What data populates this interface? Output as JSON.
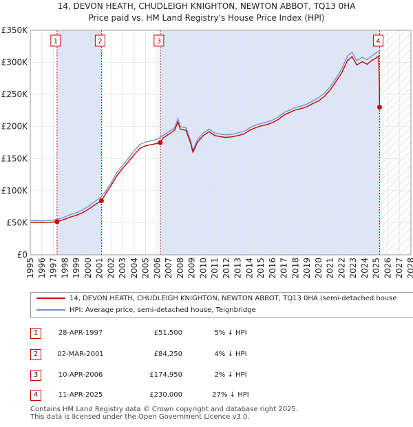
{
  "title_line1": "14, DEVON HEATH, CHUDLEIGH KNIGHTON, NEWTON ABBOT, TQ13 0HA",
  "title_line2": "Price paid vs. HM Land Registry's House Price Index (HPI)",
  "colors": {
    "property": "#cc0000",
    "hpi": "#6a8fd0",
    "shade": "#dde6f7",
    "hatch": "#c8c8c8",
    "marker_border": "#cc0000"
  },
  "legend": {
    "property_label": "14, DEVON HEATH, CHUDLEIGH KNIGHTON, NEWTON ABBOT, TQ13 0HA (semi-detached house",
    "hpi_label": "HPI: Average price, semi-detached house, Teignbridge"
  },
  "sales": [
    {
      "num": "1",
      "date": "28-APR-1997",
      "price": "£51,500",
      "hpi_diff": "5% ↓ HPI"
    },
    {
      "num": "2",
      "date": "02-MAR-2001",
      "price": "£84,250",
      "hpi_diff": "4% ↓ HPI"
    },
    {
      "num": "3",
      "date": "10-APR-2006",
      "price": "£174,950",
      "hpi_diff": "2% ↓ HPI"
    },
    {
      "num": "4",
      "date": "11-APR-2025",
      "price": "£230,000",
      "hpi_diff": "27% ↓ HPI"
    }
  ],
  "footer_line1": "Contains HM Land Registry data © Crown copyright and database right 2025.",
  "footer_line2": "This data is licensed under the Open Government Licence v3.0.",
  "chart_data": {
    "type": "line",
    "title": "14, DEVON HEATH, CHUDLEIGH KNIGHTON, NEWTON ABBOT, TQ13 0HA",
    "subtitle": "Price paid vs. HM Land Registry's House Price Index (HPI)",
    "xlim": [
      1995,
      2028
    ],
    "ylim": [
      0,
      350000
    ],
    "x_ticks": [
      "1995",
      "1996",
      "1997",
      "1998",
      "1999",
      "2000",
      "2001",
      "2002",
      "2003",
      "2004",
      "2005",
      "2006",
      "2007",
      "2008",
      "2009",
      "2010",
      "2011",
      "2012",
      "2013",
      "2014",
      "2015",
      "2016",
      "2017",
      "2018",
      "2019",
      "2020",
      "2021",
      "2022",
      "2023",
      "2024",
      "2025",
      "2026",
      "2027",
      "2028"
    ],
    "y_ticks": [
      {
        "value": 0,
        "label": "£0"
      },
      {
        "value": 50000,
        "label": "£50K"
      },
      {
        "value": 100000,
        "label": "£100K"
      },
      {
        "value": 150000,
        "label": "£150K"
      },
      {
        "value": 200000,
        "label": "£200K"
      },
      {
        "value": 250000,
        "label": "£250K"
      },
      {
        "value": 300000,
        "label": "£300K"
      },
      {
        "value": 350000,
        "label": "£350K"
      }
    ],
    "shaded_periods": [
      [
        1997.32,
        2001.17
      ],
      [
        2006.27,
        2025.28
      ]
    ],
    "future_from": 2025.28,
    "series": [
      {
        "name": "HPI: Average price, semi-detached house, Teignbridge",
        "points": [
          [
            1995.0,
            53000
          ],
          [
            1995.5,
            53500
          ],
          [
            1996.0,
            52800
          ],
          [
            1996.5,
            53500
          ],
          [
            1997.0,
            54200
          ],
          [
            1997.5,
            56000
          ],
          [
            1998.0,
            59000
          ],
          [
            1998.5,
            63000
          ],
          [
            1999.0,
            65500
          ],
          [
            1999.5,
            70000
          ],
          [
            2000.0,
            75000
          ],
          [
            2000.5,
            82000
          ],
          [
            2001.0,
            88000
          ],
          [
            2001.5,
            98000
          ],
          [
            2002.0,
            112000
          ],
          [
            2002.5,
            128000
          ],
          [
            2003.0,
            140000
          ],
          [
            2003.5,
            150000
          ],
          [
            2004.0,
            162000
          ],
          [
            2004.5,
            172000
          ],
          [
            2005.0,
            176000
          ],
          [
            2005.5,
            178000
          ],
          [
            2006.0,
            180000
          ],
          [
            2006.5,
            186000
          ],
          [
            2007.0,
            192000
          ],
          [
            2007.5,
            198000
          ],
          [
            2007.8,
            212000
          ],
          [
            2008.0,
            200000
          ],
          [
            2008.5,
            198000
          ],
          [
            2008.9,
            178000
          ],
          [
            2009.1,
            163000
          ],
          [
            2009.5,
            180000
          ],
          [
            2010.0,
            190000
          ],
          [
            2010.5,
            196000
          ],
          [
            2011.0,
            190000
          ],
          [
            2011.5,
            188000
          ],
          [
            2012.0,
            187000
          ],
          [
            2012.5,
            188000
          ],
          [
            2013.0,
            190000
          ],
          [
            2013.5,
            192000
          ],
          [
            2014.0,
            198000
          ],
          [
            2014.5,
            202000
          ],
          [
            2015.0,
            205000
          ],
          [
            2015.5,
            207000
          ],
          [
            2016.0,
            210000
          ],
          [
            2016.5,
            215000
          ],
          [
            2017.0,
            222000
          ],
          [
            2017.5,
            226000
          ],
          [
            2018.0,
            230000
          ],
          [
            2018.5,
            232000
          ],
          [
            2019.0,
            235000
          ],
          [
            2019.5,
            240000
          ],
          [
            2020.0,
            245000
          ],
          [
            2020.5,
            252000
          ],
          [
            2021.0,
            262000
          ],
          [
            2021.5,
            275000
          ],
          [
            2022.0,
            290000
          ],
          [
            2022.5,
            310000
          ],
          [
            2022.9,
            316000
          ],
          [
            2023.3,
            303000
          ],
          [
            2023.8,
            308000
          ],
          [
            2024.2,
            304000
          ],
          [
            2024.6,
            310000
          ],
          [
            2025.0,
            315000
          ],
          [
            2025.28,
            318000
          ]
        ]
      },
      {
        "name": "14, DEVON HEATH, CHUDLEIGH KNIGHTON, NEWTON ABBOT, TQ13 0HA (semi-detached house",
        "points": [
          [
            1995.0,
            50500
          ],
          [
            1995.5,
            51000
          ],
          [
            1996.0,
            50200
          ],
          [
            1996.5,
            50800
          ],
          [
            1997.0,
            51200
          ],
          [
            1997.32,
            51500
          ],
          [
            1997.5,
            52800
          ],
          [
            1998.0,
            55500
          ],
          [
            1998.5,
            59000
          ],
          [
            1999.0,
            61500
          ],
          [
            1999.5,
            65500
          ],
          [
            2000.0,
            70500
          ],
          [
            2000.5,
            77000
          ],
          [
            2001.0,
            82500
          ],
          [
            2001.17,
            84250
          ],
          [
            2001.5,
            94000
          ],
          [
            2002.0,
            108000
          ],
          [
            2002.5,
            123000
          ],
          [
            2003.0,
            135000
          ],
          [
            2003.5,
            145000
          ],
          [
            2004.0,
            156000
          ],
          [
            2004.5,
            166000
          ],
          [
            2005.0,
            170000
          ],
          [
            2005.5,
            172000
          ],
          [
            2006.0,
            173500
          ],
          [
            2006.27,
            174950
          ],
          [
            2006.5,
            182000
          ],
          [
            2007.0,
            188000
          ],
          [
            2007.5,
            194000
          ],
          [
            2007.8,
            207000
          ],
          [
            2008.0,
            196000
          ],
          [
            2008.5,
            194000
          ],
          [
            2008.9,
            174000
          ],
          [
            2009.1,
            160000
          ],
          [
            2009.5,
            176000
          ],
          [
            2010.0,
            186000
          ],
          [
            2010.5,
            192000
          ],
          [
            2011.0,
            186000
          ],
          [
            2011.5,
            184000
          ],
          [
            2012.0,
            183000
          ],
          [
            2012.5,
            184000
          ],
          [
            2013.0,
            186000
          ],
          [
            2013.5,
            188000
          ],
          [
            2014.0,
            194000
          ],
          [
            2014.5,
            198000
          ],
          [
            2015.0,
            201000
          ],
          [
            2015.5,
            203000
          ],
          [
            2016.0,
            206000
          ],
          [
            2016.5,
            211000
          ],
          [
            2017.0,
            218000
          ],
          [
            2017.5,
            222000
          ],
          [
            2018.0,
            226000
          ],
          [
            2018.5,
            228000
          ],
          [
            2019.0,
            231000
          ],
          [
            2019.5,
            236000
          ],
          [
            2020.0,
            240000
          ],
          [
            2020.5,
            247000
          ],
          [
            2021.0,
            257000
          ],
          [
            2021.5,
            270000
          ],
          [
            2022.0,
            284000
          ],
          [
            2022.5,
            303000
          ],
          [
            2022.9,
            309000
          ],
          [
            2023.3,
            296000
          ],
          [
            2023.8,
            301000
          ],
          [
            2024.2,
            297000
          ],
          [
            2024.6,
            303000
          ],
          [
            2025.0,
            307000
          ],
          [
            2025.2,
            310000
          ],
          [
            2025.26,
            270000
          ],
          [
            2025.28,
            230000
          ]
        ]
      }
    ],
    "sale_points": [
      {
        "label": "1",
        "x": 1997.32,
        "y": 51500
      },
      {
        "label": "2",
        "x": 2001.17,
        "y": 84250
      },
      {
        "label": "3",
        "x": 2006.27,
        "y": 174950
      },
      {
        "label": "4",
        "x": 2025.28,
        "y": 230000
      }
    ]
  }
}
